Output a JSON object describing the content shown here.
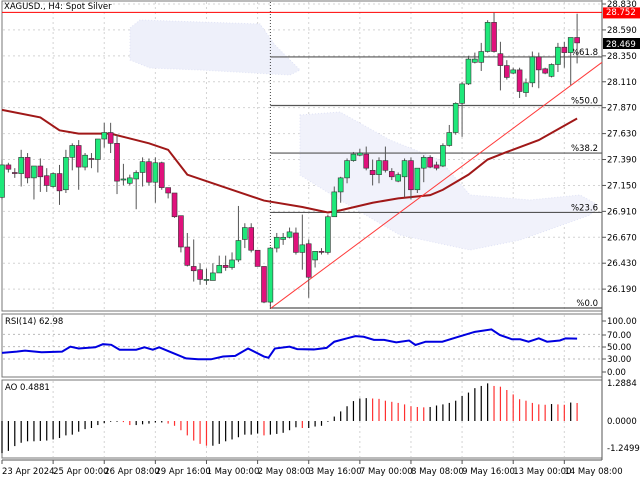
{
  "header": {
    "title": "XAGUSD., H4:  Spot Silver"
  },
  "colors": {
    "bull": "#1ee87a",
    "bear": "#e0117c",
    "ma": "#a01818",
    "trendline": "#ff3b3b",
    "rsi": "#0000e0",
    "ao_up": "#000000",
    "ao_down": "#ff3030",
    "resistance": "#ff0000"
  },
  "chart_data": [
    {
      "type": "candlestick",
      "title": "XAGUSD., H4:  Spot Silver",
      "ylim": [
        26.0,
        28.83
      ],
      "grid": true,
      "y_ticks": [
        "28.830",
        "28.590",
        "28.350",
        "28.110",
        "27.870",
        "27.630",
        "27.390",
        "27.150",
        "26.910",
        "26.670",
        "26.430",
        "26.190"
      ],
      "x_ticks": [
        "23 Apr 2024",
        "25 Apr 00:00",
        "26 Apr 08:00",
        "29 Apr 16:00",
        "1 May 00:00",
        "2 May 08:00",
        "3 May 16:00",
        "7 May 00:00",
        "8 May 08:00",
        "9 May 16:00",
        "13 May 00:00",
        "14 May 08:00"
      ],
      "candles_ohlc": [
        [
          27.04,
          27.39,
          27.02,
          27.34
        ],
        [
          27.34,
          27.36,
          27.27,
          27.3
        ],
        [
          27.27,
          27.31,
          27.22,
          27.26
        ],
        [
          27.26,
          27.48,
          27.14,
          27.41
        ],
        [
          27.41,
          27.45,
          27.17,
          27.22
        ],
        [
          27.22,
          27.33,
          27.02,
          27.33
        ],
        [
          27.33,
          27.4,
          27.09,
          27.23
        ],
        [
          27.24,
          27.31,
          27.09,
          27.15
        ],
        [
          27.14,
          27.27,
          27.13,
          27.26
        ],
        [
          27.26,
          27.34,
          26.97,
          27.1
        ],
        [
          27.11,
          27.48,
          27.08,
          27.41
        ],
        [
          27.41,
          27.54,
          27.29,
          27.52
        ],
        [
          27.52,
          27.57,
          27.11,
          27.32
        ],
        [
          27.32,
          27.45,
          27.29,
          27.43
        ],
        [
          27.4,
          27.45,
          27.31,
          27.39
        ],
        [
          27.39,
          27.58,
          27.27,
          27.58
        ],
        [
          27.58,
          27.73,
          27.5,
          27.64
        ],
        [
          27.64,
          27.73,
          27.45,
          27.54
        ],
        [
          27.54,
          27.62,
          27.07,
          27.19
        ],
        [
          27.2,
          27.35,
          27.15,
          27.21
        ],
        [
          27.17,
          27.25,
          27.15,
          27.22
        ],
        [
          27.21,
          27.29,
          26.93,
          27.27
        ],
        [
          27.27,
          27.41,
          27.14,
          27.37
        ],
        [
          27.37,
          27.4,
          27.15,
          27.18
        ],
        [
          27.18,
          27.41,
          26.99,
          27.36
        ],
        [
          27.36,
          27.37,
          27.11,
          27.13
        ],
        [
          27.13,
          27.13,
          27.03,
          27.08
        ],
        [
          27.08,
          27.08,
          26.85,
          26.86
        ],
        [
          26.87,
          26.87,
          26.53,
          26.58
        ],
        [
          26.58,
          26.71,
          26.4,
          26.41
        ],
        [
          26.4,
          26.65,
          26.26,
          26.36
        ],
        [
          26.37,
          26.43,
          26.23,
          26.28
        ],
        [
          26.27,
          26.38,
          26.23,
          26.28
        ],
        [
          26.27,
          26.43,
          26.27,
          26.34
        ],
        [
          26.34,
          26.5,
          26.34,
          26.41
        ],
        [
          26.41,
          26.5,
          26.36,
          26.39
        ],
        [
          26.39,
          26.53,
          26.37,
          26.46
        ],
        [
          26.46,
          26.96,
          26.44,
          26.64
        ],
        [
          26.65,
          26.8,
          26.57,
          26.76
        ],
        [
          26.76,
          26.8,
          26.53,
          26.55
        ],
        [
          26.55,
          26.55,
          26.4,
          26.4
        ],
        [
          26.4,
          26.4,
          26.06,
          26.07
        ],
        [
          26.07,
          26.58,
          26.01,
          26.57
        ],
        [
          26.57,
          26.71,
          26.53,
          26.67
        ],
        [
          26.65,
          26.71,
          26.6,
          26.67
        ],
        [
          26.67,
          26.76,
          26.66,
          26.72
        ],
        [
          26.71,
          26.76,
          26.51,
          26.53
        ],
        [
          26.53,
          26.88,
          26.37,
          26.6
        ],
        [
          26.61,
          26.65,
          26.11,
          26.3
        ],
        [
          26.46,
          26.54,
          26.39,
          26.54
        ],
        [
          26.54,
          26.57,
          26.51,
          26.53
        ],
        [
          26.53,
          26.88,
          26.51,
          26.86
        ],
        [
          26.86,
          27.14,
          26.86,
          27.09
        ],
        [
          27.09,
          27.23,
          26.99,
          27.22
        ],
        [
          27.22,
          27.4,
          27.17,
          27.38
        ],
        [
          27.38,
          27.46,
          27.37,
          27.44
        ],
        [
          27.43,
          27.49,
          27.42,
          27.45
        ],
        [
          27.44,
          27.51,
          27.29,
          27.31
        ],
        [
          27.29,
          27.39,
          27.15,
          27.25
        ],
        [
          27.25,
          27.41,
          27.17,
          27.38
        ],
        [
          27.38,
          27.51,
          27.27,
          27.29
        ],
        [
          27.28,
          27.31,
          27.2,
          27.23
        ],
        [
          27.19,
          27.27,
          27.18,
          27.25
        ],
        [
          27.23,
          27.4,
          27.04,
          27.38
        ],
        [
          27.38,
          27.41,
          27.02,
          27.11
        ],
        [
          27.11,
          27.31,
          27.08,
          27.31
        ],
        [
          27.31,
          27.43,
          27.18,
          27.41
        ],
        [
          27.41,
          27.43,
          27.31,
          27.32
        ],
        [
          27.34,
          27.37,
          27.29,
          27.31
        ],
        [
          27.33,
          27.54,
          27.32,
          27.52
        ],
        [
          27.52,
          27.71,
          27.51,
          27.64
        ],
        [
          27.64,
          27.92,
          27.62,
          27.91
        ],
        [
          27.91,
          28.11,
          27.6,
          28.09
        ],
        [
          28.09,
          28.35,
          28.08,
          28.32
        ],
        [
          28.29,
          28.38,
          28.28,
          28.32
        ],
        [
          28.29,
          28.47,
          28.21,
          28.39
        ],
        [
          28.39,
          28.68,
          28.38,
          28.66
        ],
        [
          28.66,
          28.75,
          28.38,
          28.39
        ],
        [
          28.37,
          28.48,
          28.03,
          28.26
        ],
        [
          28.26,
          28.31,
          28.13,
          28.15
        ],
        [
          28.19,
          28.24,
          28.18,
          28.22
        ],
        [
          28.22,
          28.24,
          27.96,
          28.02
        ],
        [
          28.01,
          28.14,
          27.97,
          28.1
        ],
        [
          28.1,
          28.39,
          28.06,
          28.34
        ],
        [
          28.34,
          28.38,
          28.05,
          28.22
        ],
        [
          28.23,
          28.24,
          28.18,
          28.19
        ],
        [
          28.16,
          28.28,
          28.15,
          28.27
        ],
        [
          28.27,
          28.47,
          28.2,
          28.43
        ],
        [
          28.43,
          28.48,
          28.24,
          28.38
        ],
        [
          28.38,
          28.52,
          28.08,
          28.52
        ],
        [
          28.52,
          28.74,
          28.28,
          28.47
        ]
      ],
      "moving_average": [
        [
          1,
          27.85
        ],
        [
          7,
          27.78
        ],
        [
          10,
          27.66
        ],
        [
          13,
          27.63
        ],
        [
          18,
          27.63
        ],
        [
          24,
          27.54
        ],
        [
          27,
          27.48
        ],
        [
          30,
          27.25
        ],
        [
          37,
          27.11
        ],
        [
          42,
          27.01
        ],
        [
          48,
          26.95
        ],
        [
          52,
          26.9
        ],
        [
          54,
          26.92
        ],
        [
          59,
          26.99
        ],
        [
          63,
          27.03
        ],
        [
          68,
          27.06
        ],
        [
          70,
          27.11
        ],
        [
          74,
          27.25
        ],
        [
          77,
          27.39
        ],
        [
          80,
          27.46
        ],
        [
          85,
          27.57
        ],
        [
          91,
          27.77
        ]
      ],
      "trendline": {
        "from": [
          43,
          26.01
        ],
        "to_price_at_right_edge": 28.29
      },
      "horizontal_line": {
        "price": 28.752,
        "label": "28.752"
      },
      "current_price": {
        "price": 28.469,
        "label": "28.469"
      },
      "fibonacci": {
        "start_candle": 43,
        "levels": [
          {
            "label": "%61.8",
            "price": 28.34
          },
          {
            "label": "%50.0",
            "price": 27.89
          },
          {
            "label": "%38.2",
            "price": 27.45
          },
          {
            "label": "%23.6",
            "price": 26.9
          },
          {
            "label": "%0.0",
            "price": 26.015
          }
        ]
      }
    },
    {
      "type": "line",
      "title": "RSI(14) 62.98",
      "ylim": [
        0,
        100
      ],
      "y_ticks": [
        "100.00",
        "70.00",
        "50.00",
        "30.00",
        "0.00"
      ],
      "levels": [
        70,
        50,
        30
      ],
      "points": [
        [
          1,
          40
        ],
        [
          3.3,
          42
        ],
        [
          4.6,
          43.5
        ],
        [
          7.2,
          41
        ],
        [
          10.4,
          42
        ],
        [
          11.7,
          50
        ],
        [
          13,
          47
        ],
        [
          15.6,
          49
        ],
        [
          16.8,
          54
        ],
        [
          18.1,
          53
        ],
        [
          19.4,
          45
        ],
        [
          22,
          45
        ],
        [
          23.3,
          49
        ],
        [
          24.6,
          45
        ],
        [
          25.6,
          49
        ],
        [
          27.2,
          42
        ],
        [
          29.8,
          31
        ],
        [
          31.7,
          29.5
        ],
        [
          33.7,
          29.5
        ],
        [
          35.6,
          34
        ],
        [
          37.5,
          35
        ],
        [
          39.5,
          47
        ],
        [
          42,
          34
        ],
        [
          42.7,
          32
        ],
        [
          43.7,
          47
        ],
        [
          46,
          50
        ],
        [
          47.2,
          46
        ],
        [
          49.8,
          45.5
        ],
        [
          51.8,
          48
        ],
        [
          53,
          58
        ],
        [
          55,
          63.5
        ],
        [
          56.3,
          67
        ],
        [
          57.6,
          66
        ],
        [
          59.2,
          61
        ],
        [
          60.8,
          61
        ],
        [
          62.7,
          57
        ],
        [
          64.7,
          60
        ],
        [
          65.7,
          52.7
        ],
        [
          67.3,
          58
        ],
        [
          69.9,
          58
        ],
        [
          72.4,
          66
        ],
        [
          75,
          74
        ],
        [
          77.6,
          78
        ],
        [
          78.9,
          69
        ],
        [
          80.8,
          62
        ],
        [
          82.1,
          62
        ],
        [
          83.4,
          58
        ],
        [
          85,
          63.5
        ],
        [
          86.3,
          58
        ],
        [
          88.3,
          60
        ],
        [
          89.2,
          63.5
        ],
        [
          91,
          62.98
        ]
      ]
    },
    {
      "type": "bar",
      "title": "AO 0.4881",
      "y_ticks": [
        "1.2884",
        "0.0000",
        "-1.2499"
      ],
      "values": [
        -0.87,
        -0.81,
        -0.68,
        -0.59,
        -0.55,
        -0.55,
        -0.54,
        -0.53,
        -0.5,
        -0.46,
        -0.39,
        -0.37,
        -0.29,
        -0.22,
        -0.19,
        -0.11,
        -0.06,
        -0.02,
        -0.02,
        -0.03,
        -0.11,
        -0.11,
        -0.09,
        -0.07,
        -0.04,
        -0.04,
        -0.07,
        -0.13,
        -0.25,
        -0.39,
        -0.53,
        -0.62,
        -0.67,
        -0.67,
        -0.62,
        -0.55,
        -0.5,
        -0.44,
        -0.37,
        -0.37,
        -0.34,
        -0.39,
        -0.37,
        -0.35,
        -0.32,
        -0.25,
        -0.17,
        -0.19,
        -0.19,
        -0.15,
        -0.13,
        -0.02,
        0.12,
        0.26,
        0.4,
        0.54,
        0.61,
        0.62,
        0.61,
        0.6,
        0.55,
        0.52,
        0.49,
        0.45,
        0.4,
        0.38,
        0.37,
        0.38,
        0.42,
        0.45,
        0.49,
        0.55,
        0.68,
        0.77,
        0.89,
        0.95,
        1.02,
        0.95,
        0.93,
        0.84,
        0.72,
        0.59,
        0.55,
        0.49,
        0.45,
        0.44,
        0.46,
        0.45,
        0.44,
        0.5,
        0.4881
      ]
    }
  ]
}
